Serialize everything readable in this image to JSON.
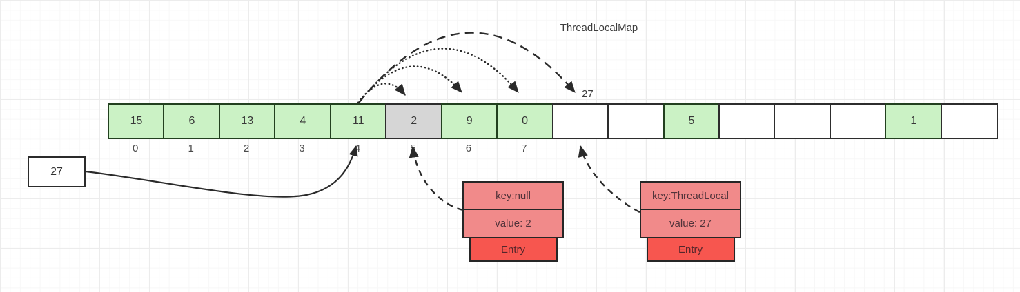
{
  "title": "ThreadLocalMap",
  "array": {
    "cells": [
      {
        "value": "15",
        "state": "green"
      },
      {
        "value": "6",
        "state": "green"
      },
      {
        "value": "13",
        "state": "green"
      },
      {
        "value": "4",
        "state": "green"
      },
      {
        "value": "11",
        "state": "green"
      },
      {
        "value": "2",
        "state": "gray"
      },
      {
        "value": "9",
        "state": "green"
      },
      {
        "value": "0",
        "state": "green"
      },
      {
        "value": "",
        "state": "white"
      },
      {
        "value": "",
        "state": "white"
      },
      {
        "value": "5",
        "state": "green"
      },
      {
        "value": "",
        "state": "white"
      },
      {
        "value": "",
        "state": "white"
      },
      {
        "value": "",
        "state": "white"
      },
      {
        "value": "1",
        "state": "green"
      },
      {
        "value": "",
        "state": "white"
      }
    ],
    "index_labels": [
      "0",
      "1",
      "2",
      "3",
      "4",
      "5",
      "6",
      "7"
    ]
  },
  "insert_box": {
    "value": "27"
  },
  "probe_label": "27",
  "entries": [
    {
      "key": "key:null",
      "value": "value: 2",
      "label": "Entry"
    },
    {
      "key": "key:ThreadLocal",
      "value": "value: 27",
      "label": "Entry"
    }
  ],
  "colors": {
    "green": "#cbf2c5",
    "gray": "#d6d6d6",
    "white": "#ffffff",
    "salmon": "#f18a8a",
    "entry_red": "#f7564f"
  }
}
